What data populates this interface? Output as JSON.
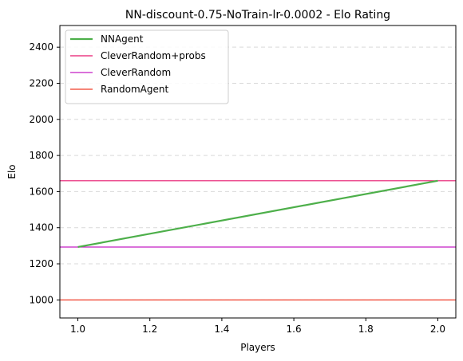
{
  "chart_data": {
    "type": "line",
    "title": "NN-discount-0.75-NoTrain-lr-0.0002 - Elo Rating",
    "xlabel": "Players",
    "ylabel": "Elo",
    "xlim": [
      0.95,
      2.05
    ],
    "ylim": [
      900,
      2520
    ],
    "x_ticks": [
      1.0,
      1.2,
      1.4,
      1.6,
      1.8,
      2.0
    ],
    "x_tick_labels": [
      "1.0",
      "1.2",
      "1.4",
      "1.6",
      "1.8",
      "2.0"
    ],
    "y_ticks": [
      1000,
      1200,
      1400,
      1600,
      1800,
      2000,
      2200,
      2400
    ],
    "y_tick_labels": [
      "1000",
      "1200",
      "1400",
      "1600",
      "1800",
      "2000",
      "2200",
      "2400"
    ],
    "grid": "horizontal dashed",
    "legend_position": "top-left",
    "series": [
      {
        "name": "NNAgent",
        "kind": "line",
        "color": "#4daf4a",
        "x": [
          1.0,
          2.0
        ],
        "y": [
          1293,
          1660
        ]
      }
    ],
    "reference_lines": [
      {
        "name": "CleverRandom+probs",
        "y": 1660,
        "color": "#e6176e"
      },
      {
        "name": "CleverRandom",
        "y": 1293,
        "color": "#c41fc4"
      },
      {
        "name": "RandomAgent",
        "y": 1000,
        "color": "#f03c28"
      }
    ]
  }
}
